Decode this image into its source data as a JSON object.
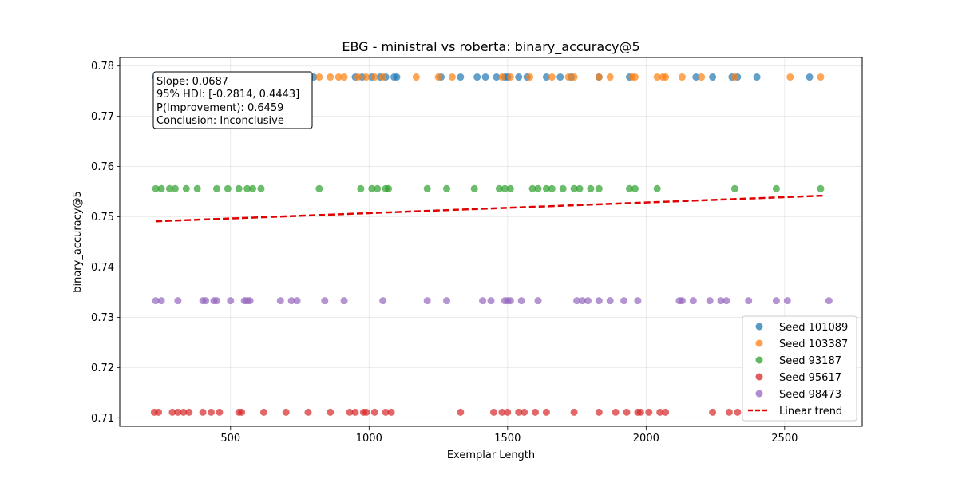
{
  "chart_data": {
    "type": "scatter",
    "title": "EBG - ministral vs roberta: binary_accuracy@5",
    "xlabel": "Exemplar Length",
    "ylabel": "binary_accuracy@5",
    "xlim": [
      100,
      2780
    ],
    "ylim": [
      0.7083,
      0.7817
    ],
    "x_ticks": [
      500,
      1000,
      1500,
      2000,
      2500
    ],
    "y_ticks": [
      0.71,
      0.72,
      0.73,
      0.74,
      0.75,
      0.76,
      0.77,
      0.78
    ],
    "x_tick_labels": [
      "500",
      "1000",
      "1500",
      "2000",
      "2500"
    ],
    "y_tick_labels": [
      "0.71",
      "0.72",
      "0.73",
      "0.74",
      "0.75",
      "0.76",
      "0.77",
      "0.78"
    ],
    "grid": true,
    "legend_position": "bottom-right",
    "series": [
      {
        "name": "Seed 101089",
        "color": "#1f77b4",
        "y": 0.7778,
        "x": [
          230,
          275,
          310,
          345,
          400,
          430,
          470,
          520,
          540,
          560,
          590,
          700,
          730,
          770,
          800,
          950,
          975,
          1010,
          1040,
          1060,
          1090,
          1100,
          1260,
          1330,
          1390,
          1420,
          1460,
          1490,
          1500,
          1540,
          1570,
          1640,
          1690,
          1730,
          1830,
          1940,
          2180,
          2240,
          2310,
          2330,
          2400,
          2590
        ]
      },
      {
        "name": "Seed 103387",
        "color": "#ff7f0e",
        "y": 0.7778,
        "x": [
          240,
          300,
          340,
          400,
          430,
          460,
          500,
          530,
          560,
          600,
          660,
          760,
          820,
          860,
          890,
          910,
          960,
          990,
          1020,
          1050,
          1170,
          1250,
          1300,
          1480,
          1510,
          1580,
          1660,
          1720,
          1740,
          1830,
          1870,
          1950,
          1960,
          2040,
          2060,
          2070,
          2130,
          2200,
          2320,
          2520,
          2630
        ]
      },
      {
        "name": "Seed 93187",
        "color": "#2ca02c",
        "y": 0.7556,
        "x": [
          230,
          250,
          280,
          300,
          340,
          380,
          450,
          490,
          530,
          560,
          580,
          610,
          820,
          970,
          1010,
          1030,
          1060,
          1070,
          1210,
          1280,
          1380,
          1470,
          1490,
          1510,
          1590,
          1610,
          1640,
          1660,
          1700,
          1740,
          1760,
          1800,
          1830,
          1940,
          1960,
          2040,
          2320,
          2470,
          2630
        ]
      },
      {
        "name": "Seed 95617",
        "color": "#d62728",
        "y": 0.7111,
        "x": [
          225,
          240,
          290,
          310,
          330,
          350,
          400,
          430,
          460,
          530,
          540,
          620,
          700,
          780,
          860,
          930,
          950,
          980,
          990,
          1020,
          1060,
          1080,
          1330,
          1450,
          1480,
          1500,
          1540,
          1560,
          1600,
          1640,
          1740,
          1830,
          1890,
          1930,
          1970,
          1980,
          2010,
          2050,
          2070,
          2240,
          2300,
          2330
        ]
      },
      {
        "name": "Seed 98473",
        "color": "#9467bd",
        "y": 0.7333,
        "x": [
          230,
          250,
          310,
          400,
          410,
          440,
          450,
          500,
          550,
          560,
          570,
          680,
          720,
          740,
          840,
          910,
          1050,
          1210,
          1280,
          1410,
          1440,
          1490,
          1500,
          1510,
          1550,
          1610,
          1750,
          1770,
          1790,
          1830,
          1870,
          1920,
          1970,
          2120,
          2130,
          2170,
          2230,
          2270,
          2290,
          2370,
          2470,
          2510,
          2660
        ]
      }
    ],
    "trend": {
      "name": "Linear trend",
      "color": "#e00000",
      "x": [
        230,
        2640
      ],
      "y": [
        0.7491,
        0.7542
      ]
    },
    "annotation": {
      "lines": [
        "Slope: 0.0687",
        "95% HDI: [-0.2814, 0.4443]",
        "P(Improvement): 0.6459",
        "Conclusion: Inconclusive"
      ]
    }
  }
}
